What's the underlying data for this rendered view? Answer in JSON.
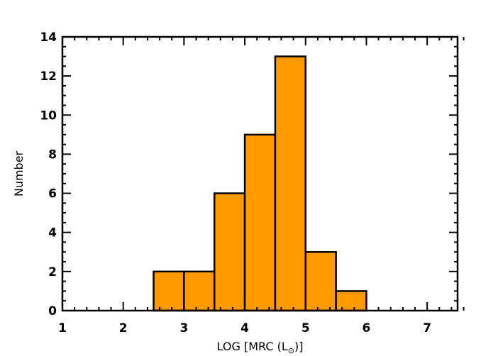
{
  "chart_data": {
    "type": "bar",
    "subtype": "histogram",
    "bar_color": "#FF9900",
    "edge_color": "#000000",
    "bins": [
      {
        "x0": 2.5,
        "x1": 3.0,
        "count": 2
      },
      {
        "x0": 3.0,
        "x1": 3.5,
        "count": 2
      },
      {
        "x0": 3.5,
        "x1": 4.0,
        "count": 6
      },
      {
        "x0": 4.0,
        "x1": 4.5,
        "count": 9
      },
      {
        "x0": 4.5,
        "x1": 5.0,
        "count": 13
      },
      {
        "x0": 5.0,
        "x1": 5.5,
        "count": 3
      },
      {
        "x0": 5.5,
        "x1": 6.0,
        "count": 1
      }
    ],
    "xlim": [
      1,
      7.5
    ],
    "ylim": [
      0,
      14
    ],
    "xticks": [
      1,
      2,
      3,
      4,
      5,
      6,
      7
    ],
    "yticks": [
      0,
      2,
      4,
      6,
      8,
      10,
      12,
      14
    ],
    "xlabel": "LOG [MRC (L",
    "xlabel_sub": "⊙",
    "xlabel_close": ")]",
    "ylabel": "Number",
    "grid": false
  }
}
